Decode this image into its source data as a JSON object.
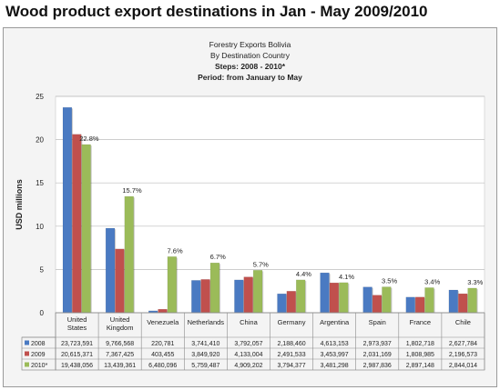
{
  "page_heading": "Wood product export destinations in Jan - May 2009/2010",
  "chart_data": {
    "type": "bar",
    "title_lines": [
      "Forestry Exports Bolivia",
      "By Destination  Country",
      "Steps: 2008 - 2010*",
      "Period: from January to May"
    ],
    "ylabel": "USD millions",
    "xlabel": "",
    "ylim": [
      0,
      25
    ],
    "yticks": [
      0,
      5,
      10,
      15,
      20,
      25
    ],
    "grid": true,
    "categories": [
      [
        "United",
        "States"
      ],
      [
        "United",
        "Kingdom"
      ],
      [
        "Venezuela"
      ],
      [
        "Netherlands"
      ],
      [
        "China"
      ],
      [
        "Germany"
      ],
      [
        "Argentina"
      ],
      [
        "Spain"
      ],
      [
        "France"
      ],
      [
        "Chile"
      ]
    ],
    "series": [
      {
        "name": "2008",
        "color": "#4a7ac2",
        "values": [
          23.723591,
          9.766568,
          0.220781,
          3.74141,
          3.792057,
          2.18846,
          4.613153,
          2.973937,
          1.802718,
          2.627784
        ],
        "labels": [
          "23,723,591",
          "9,766,568",
          "220,781",
          "3,741,410",
          "3,792,057",
          "2,188,460",
          "4,613,153",
          "2,973,937",
          "1,802,718",
          "2,627,784"
        ]
      },
      {
        "name": "2009",
        "color": "#c0504d",
        "values": [
          20.615371,
          7.367425,
          0.403455,
          3.84992,
          4.133004,
          2.491533,
          3.453997,
          2.031169,
          1.808985,
          2.196573
        ],
        "labels": [
          "20,615,371",
          "7,367,425",
          "403,455",
          "3,849,920",
          "4,133,004",
          "2,491,533",
          "3,453,997",
          "2,031,169",
          "1,808,985",
          "2,196,573"
        ]
      },
      {
        "name": "2010*",
        "color": "#9bbb59",
        "values": [
          19.438056,
          13.439361,
          6.480096,
          5.759487,
          4.909202,
          3.794377,
          3.481298,
          2.987836,
          2.897148,
          2.844014
        ],
        "labels": [
          "19,438,056",
          "13,439,361",
          "6,480,096",
          "5,759,487",
          "4,909,202",
          "3,794,377",
          "3,481,298",
          "2,987,836",
          "2,897,148",
          "2,844,014"
        ]
      }
    ],
    "annotations": [
      "22.8%",
      "15.7%",
      "7.6%",
      "6.7%",
      "5.7%",
      "4.4%",
      "4.1%",
      "3.5%",
      "3.4%",
      "3.3%"
    ]
  }
}
